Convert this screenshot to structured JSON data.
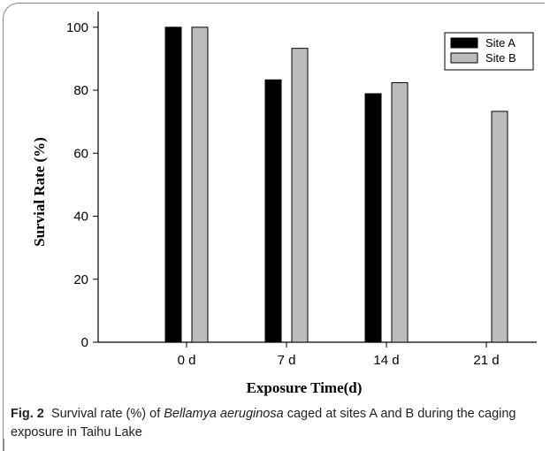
{
  "chart_data": {
    "type": "bar",
    "categories": [
      "0 d",
      "7 d",
      "14 d",
      "21 d"
    ],
    "series": [
      {
        "name": "Site A",
        "values": [
          100,
          83.3,
          78.9,
          null
        ],
        "color": "#000000"
      },
      {
        "name": "Site B",
        "values": [
          100,
          93.3,
          82.4,
          73.3
        ],
        "color": "#bdbdbd"
      }
    ],
    "xlabel": "Exposure Time(d)",
    "ylabel": "Survial Rate (%)",
    "ylim": [
      0,
      105
    ],
    "yticks": [
      0,
      20,
      40,
      60,
      80,
      100
    ],
    "legend_position": "top-right",
    "grid": false
  },
  "caption": {
    "label": "Fig. 2",
    "text_before": "Survival rate (%) of ",
    "species": "Bellamya aeruginosa",
    "text_after": " caged at sites A and B during the caging exposure in Taihu Lake"
  }
}
